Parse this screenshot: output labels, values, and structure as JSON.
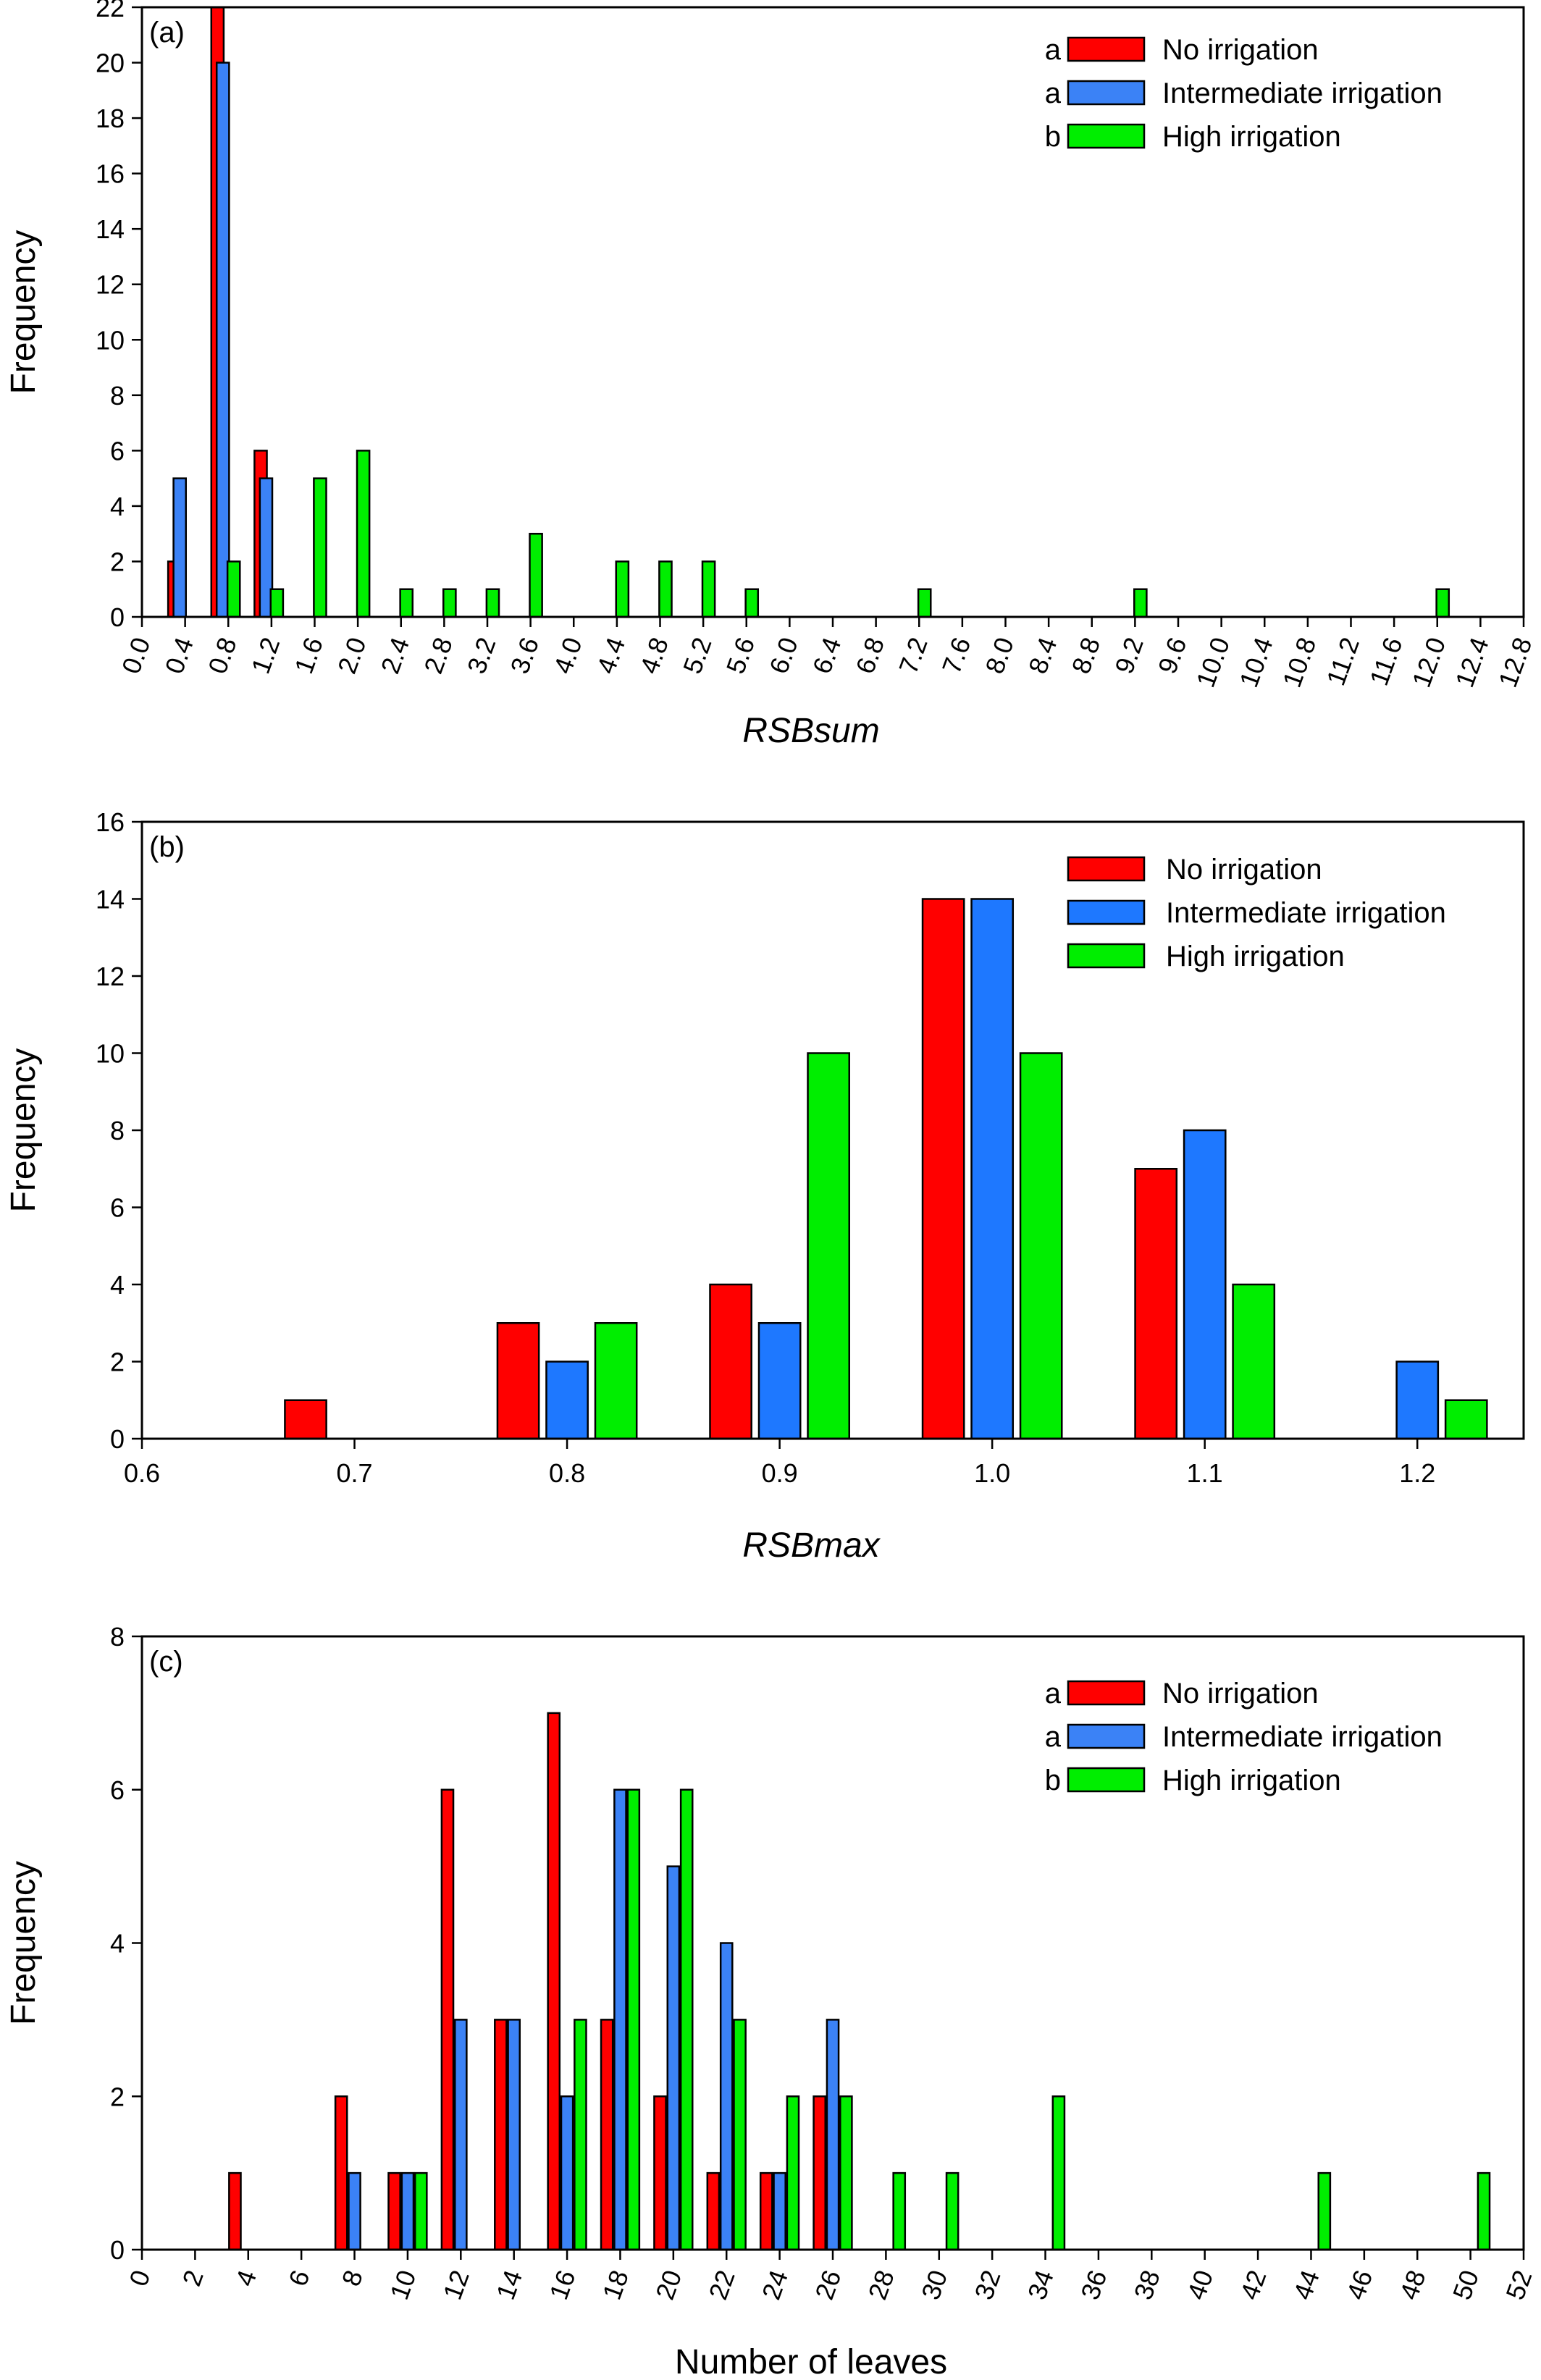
{
  "chart_data": [
    {
      "id": "a",
      "type": "bar",
      "panel_label": "(a)",
      "xlabel": "RSBsum",
      "ylabel": "Frequency",
      "xlim": [
        0.0,
        12.8
      ],
      "ylim": [
        0,
        22
      ],
      "x_ticks": [
        "0.0",
        "0.4",
        "0.8",
        "1.2",
        "1.6",
        "2.0",
        "2.4",
        "2.8",
        "3.2",
        "3.6",
        "4.0",
        "4.4",
        "4.8",
        "5.2",
        "5.6",
        "6.0",
        "6.4",
        "6.8",
        "7.2",
        "7.6",
        "8.0",
        "8.4",
        "8.8",
        "9.2",
        "9.6",
        "10.0",
        "10.4",
        "10.8",
        "11.2",
        "11.6",
        "12.0",
        "12.4",
        "12.8"
      ],
      "y_ticks": [
        "0",
        "2",
        "4",
        "6",
        "8",
        "10",
        "12",
        "14",
        "16",
        "18",
        "20",
        "22"
      ],
      "legend_placement": "top-right",
      "grid": false,
      "series": [
        {
          "name": "No irrigation",
          "letter": "a",
          "color": "#ff0000",
          "bars": [
            {
              "x": 0.3,
              "y": 2
            },
            {
              "x": 0.7,
              "y": 22
            },
            {
              "x": 1.1,
              "y": 6
            }
          ]
        },
        {
          "name": "Intermediate irrigation",
          "letter": "a",
          "color": "#3b82f6",
          "bars": [
            {
              "x": 0.35,
              "y": 5
            },
            {
              "x": 0.75,
              "y": 20
            },
            {
              "x": 1.15,
              "y": 5
            }
          ]
        },
        {
          "name": "High irrigation",
          "letter": "b",
          "color": "#00ee00",
          "bars": [
            {
              "x": 0.85,
              "y": 2
            },
            {
              "x": 1.25,
              "y": 1
            },
            {
              "x": 1.65,
              "y": 5
            },
            {
              "x": 2.05,
              "y": 6
            },
            {
              "x": 2.45,
              "y": 1
            },
            {
              "x": 2.85,
              "y": 1
            },
            {
              "x": 3.25,
              "y": 1
            },
            {
              "x": 3.65,
              "y": 3
            },
            {
              "x": 4.45,
              "y": 2
            },
            {
              "x": 4.85,
              "y": 2
            },
            {
              "x": 5.25,
              "y": 2
            },
            {
              "x": 5.65,
              "y": 1
            },
            {
              "x": 7.25,
              "y": 1
            },
            {
              "x": 9.25,
              "y": 1
            },
            {
              "x": 12.05,
              "y": 1
            }
          ]
        }
      ]
    },
    {
      "id": "b",
      "type": "bar",
      "panel_label": "(b)",
      "xlabel": "RSBmax",
      "ylabel": "Frequency",
      "xlim": [
        0.6,
        1.25
      ],
      "ylim": [
        0,
        16
      ],
      "x_ticks": [
        "0.6",
        "0.7",
        "0.8",
        "0.9",
        "1.0",
        "1.1",
        "1.2"
      ],
      "y_ticks": [
        "0",
        "2",
        "4",
        "6",
        "8",
        "10",
        "12",
        "14",
        "16"
      ],
      "legend_placement": "top-right",
      "grid": false,
      "series": [
        {
          "name": "No irrigation",
          "letter": "",
          "color": "#ff0000",
          "bars": [
            {
              "x": 0.677,
              "y": 1
            },
            {
              "x": 0.777,
              "y": 3
            },
            {
              "x": 0.877,
              "y": 4
            },
            {
              "x": 0.977,
              "y": 14
            },
            {
              "x": 1.077,
              "y": 7
            }
          ]
        },
        {
          "name": "Intermediate irrigation",
          "letter": "",
          "color": "#1e78ff",
          "bars": [
            {
              "x": 0.8,
              "y": 2
            },
            {
              "x": 0.9,
              "y": 3
            },
            {
              "x": 1.0,
              "y": 14
            },
            {
              "x": 1.1,
              "y": 8
            },
            {
              "x": 1.2,
              "y": 2
            }
          ]
        },
        {
          "name": "High irrigation",
          "letter": "",
          "color": "#00ee00",
          "bars": [
            {
              "x": 0.823,
              "y": 3
            },
            {
              "x": 0.923,
              "y": 10
            },
            {
              "x": 1.023,
              "y": 10
            },
            {
              "x": 1.123,
              "y": 4
            },
            {
              "x": 1.223,
              "y": 1
            }
          ]
        }
      ]
    },
    {
      "id": "c",
      "type": "bar",
      "panel_label": "(c)",
      "xlabel": "Number of leaves",
      "ylabel": "Frequency",
      "xlim": [
        0,
        52
      ],
      "ylim": [
        0,
        8
      ],
      "x_ticks": [
        "0",
        "2",
        "4",
        "6",
        "8",
        "10",
        "12",
        "14",
        "16",
        "18",
        "20",
        "22",
        "24",
        "26",
        "28",
        "30",
        "32",
        "34",
        "36",
        "38",
        "40",
        "42",
        "44",
        "46",
        "48",
        "50",
        "52"
      ],
      "y_ticks": [
        "0",
        "2",
        "4",
        "6",
        "8"
      ],
      "legend_placement": "top-right",
      "grid": false,
      "series": [
        {
          "name": "No irrigation",
          "letter": "a",
          "color": "#ff0000",
          "bars": [
            {
              "x": 3.5,
              "y": 1
            },
            {
              "x": 7.5,
              "y": 2
            },
            {
              "x": 9.5,
              "y": 1
            },
            {
              "x": 11.5,
              "y": 6
            },
            {
              "x": 13.5,
              "y": 3
            },
            {
              "x": 15.5,
              "y": 7
            },
            {
              "x": 17.5,
              "y": 3
            },
            {
              "x": 19.5,
              "y": 2
            },
            {
              "x": 21.5,
              "y": 1
            },
            {
              "x": 23.5,
              "y": 1
            },
            {
              "x": 25.5,
              "y": 2
            }
          ]
        },
        {
          "name": "Intermediate irrigation",
          "letter": "a",
          "color": "#3b82f6",
          "bars": [
            {
              "x": 8.0,
              "y": 1
            },
            {
              "x": 10.0,
              "y": 1
            },
            {
              "x": 12.0,
              "y": 3
            },
            {
              "x": 14.0,
              "y": 3
            },
            {
              "x": 16.0,
              "y": 2
            },
            {
              "x": 18.0,
              "y": 6
            },
            {
              "x": 20.0,
              "y": 5
            },
            {
              "x": 22.0,
              "y": 4
            },
            {
              "x": 24.0,
              "y": 1
            },
            {
              "x": 26.0,
              "y": 3
            }
          ]
        },
        {
          "name": "High irrigation",
          "letter": "b",
          "color": "#00ee00",
          "bars": [
            {
              "x": 10.5,
              "y": 1
            },
            {
              "x": 16.5,
              "y": 3
            },
            {
              "x": 18.5,
              "y": 6
            },
            {
              "x": 20.5,
              "y": 6
            },
            {
              "x": 22.5,
              "y": 3
            },
            {
              "x": 24.5,
              "y": 2
            },
            {
              "x": 26.5,
              "y": 2
            },
            {
              "x": 28.5,
              "y": 1
            },
            {
              "x": 30.5,
              "y": 1
            },
            {
              "x": 34.5,
              "y": 2
            },
            {
              "x": 44.5,
              "y": 1
            },
            {
              "x": 50.5,
              "y": 1
            }
          ]
        }
      ]
    }
  ]
}
